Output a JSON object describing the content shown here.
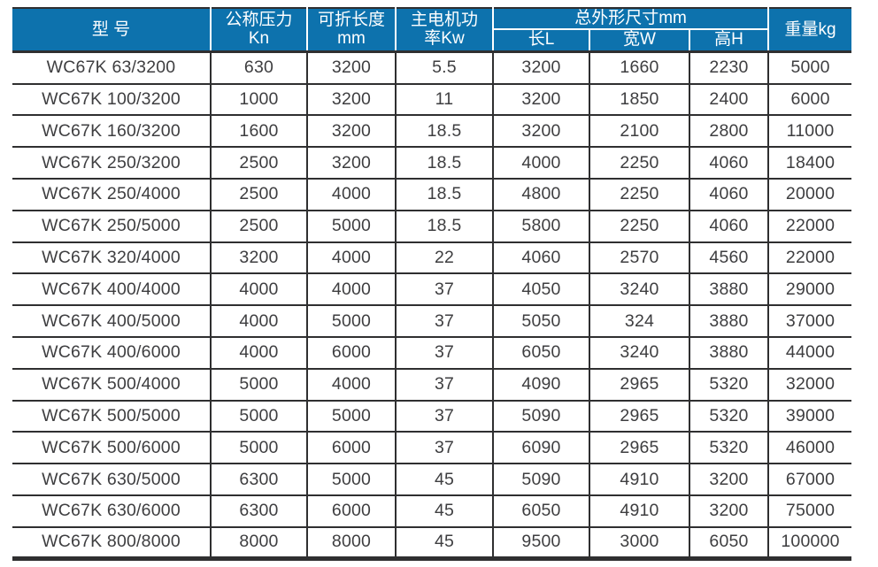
{
  "table": {
    "headers": {
      "model": "型 号",
      "pressure_line1": "公称压力",
      "pressure_line2": "Kn",
      "length_line1": "可折长度",
      "length_line2": "mm",
      "power_line1": "主电机功",
      "power_line2": "率Kw",
      "dims_group": "总外形尺寸mm",
      "dim_l": "长L",
      "dim_w": "宽W",
      "dim_h": "高H",
      "weight": "重量kg"
    },
    "column_keys": [
      "model",
      "pressure_kn",
      "fold_length_mm",
      "motor_power_kw",
      "length_l",
      "width_w",
      "height_h",
      "weight_kg"
    ],
    "rows": [
      [
        "WC67K 63/3200",
        "630",
        "3200",
        "5.5",
        "3200",
        "1660",
        "2230",
        "5000"
      ],
      [
        "WC67K 100/3200",
        "1000",
        "3200",
        "11",
        "3200",
        "1850",
        "2400",
        "6000"
      ],
      [
        "WC67K 160/3200",
        "1600",
        "3200",
        "18.5",
        "3200",
        "2100",
        "2800",
        "11000"
      ],
      [
        "WC67K 250/3200",
        "2500",
        "3200",
        "18.5",
        "4000",
        "2250",
        "4060",
        "18400"
      ],
      [
        "WC67K 250/4000",
        "2500",
        "4000",
        "18.5",
        "4800",
        "2250",
        "4060",
        "20000"
      ],
      [
        "WC67K 250/5000",
        "2500",
        "5000",
        "18.5",
        "5800",
        "2250",
        "4060",
        "22000"
      ],
      [
        "WC67K 320/4000",
        "3200",
        "4000",
        "22",
        "4060",
        "2570",
        "4560",
        "22000"
      ],
      [
        "WC67K 400/4000",
        "4000",
        "4000",
        "37",
        "4050",
        "3240",
        "3880",
        "29000"
      ],
      [
        "WC67K 400/5000",
        "4000",
        "5000",
        "37",
        "5050",
        "324",
        "3880",
        "37000"
      ],
      [
        "WC67K 400/6000",
        "4000",
        "6000",
        "37",
        "6050",
        "3240",
        "3880",
        "44000"
      ],
      [
        "WC67K 500/4000",
        "5000",
        "4000",
        "37",
        "4090",
        "2965",
        "5320",
        "32000"
      ],
      [
        "WC67K 500/5000",
        "5000",
        "5000",
        "37",
        "5090",
        "2965",
        "5320",
        "39000"
      ],
      [
        "WC67K 500/6000",
        "5000",
        "6000",
        "37",
        "6090",
        "2965",
        "5320",
        "46000"
      ],
      [
        "WC67K 630/5000",
        "6300",
        "5000",
        "45",
        "5090",
        "4910",
        "3200",
        "67000"
      ],
      [
        "WC67K 630/6000",
        "6300",
        "6000",
        "45",
        "6050",
        "4910",
        "3200",
        "75000"
      ],
      [
        "WC67K 800/8000",
        "8000",
        "8000",
        "45",
        "9500",
        "3000",
        "6050",
        "100000"
      ]
    ]
  },
  "colors": {
    "header_bg": "#0d72ad",
    "header_text": "#ffffff",
    "grid": "#2f2f30",
    "text": "#3e3e40"
  }
}
